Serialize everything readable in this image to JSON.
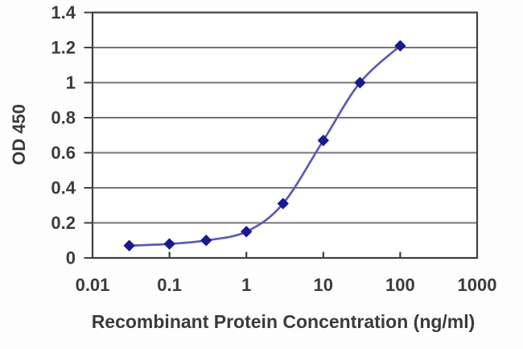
{
  "chart_data": {
    "type": "line",
    "title": "",
    "xlabel": "Recombinant Protein Concentration (ng/ml)",
    "ylabel": "OD 450",
    "x_scale": "log",
    "xlim": [
      0.01,
      1000
    ],
    "ylim": [
      0,
      1.4
    ],
    "x": [
      0.03,
      0.1,
      0.3,
      1,
      3,
      10,
      30,
      100
    ],
    "series": [
      {
        "name": "OD 450",
        "values": [
          0.07,
          0.08,
          0.1,
          0.15,
          0.31,
          0.67,
          1.0,
          1.21
        ]
      }
    ],
    "x_tick_values": [
      0.01,
      0.1,
      1,
      10,
      100,
      1000
    ],
    "x_tick_labels": [
      "0.01",
      "0.1",
      "1",
      "10",
      "100",
      "1000"
    ],
    "y_tick_values": [
      0,
      0.2,
      0.4,
      0.6,
      0.8,
      1,
      1.2,
      1.4
    ],
    "y_tick_labels": [
      "0",
      "0.2",
      "0.4",
      "0.6",
      "0.8",
      "1",
      "1.2",
      "1.4"
    ],
    "grid": "horizontal",
    "legend": "none",
    "marker": "diamond",
    "line_style": "smooth",
    "colors": {
      "line": "#5c5cae",
      "marker": "#1a1a90",
      "grid": "#757575",
      "frame": "#404040",
      "text": "#3b3b3b",
      "plot_bg": "#ffffff"
    }
  }
}
